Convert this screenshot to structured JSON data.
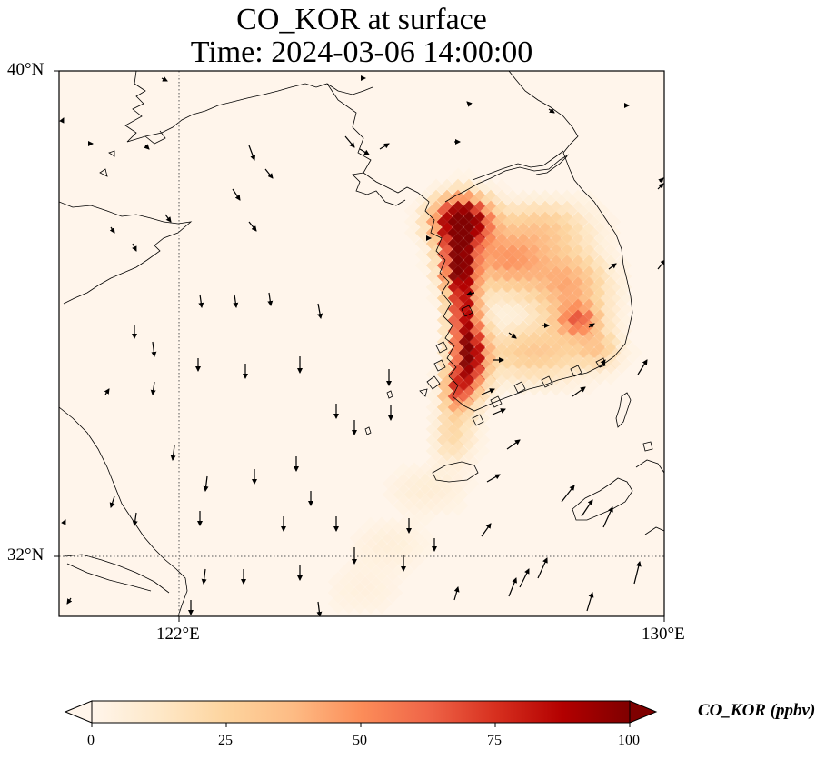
{
  "title": {
    "line1": "CO_KOR at surface",
    "line2": "Time: 2024-03-06 14:00:00"
  },
  "map": {
    "lat_ticks": [
      "40°N",
      "32°N"
    ],
    "lon_ticks": [
      "122°E",
      "130°E"
    ],
    "extent": {
      "lon_min": 120,
      "lon_max": 130,
      "lat_min": 31,
      "lat_max": 40
    },
    "gridlines": {
      "lon": 122,
      "lat": 32,
      "style": "dotted"
    },
    "background_color": "#fff5eb"
  },
  "colorbar": {
    "label": "CO_KOR (ppbv)",
    "ticks": [
      "0",
      "25",
      "50",
      "75",
      "100"
    ],
    "min": 0,
    "max": 100,
    "extend": "both",
    "colormap": "OrRd",
    "colors": [
      "#fff5eb",
      "#fee8c8",
      "#fdd49e",
      "#fdbb84",
      "#fc8d59",
      "#ef6548",
      "#d7301f",
      "#b30000",
      "#7f0000"
    ]
  }
}
